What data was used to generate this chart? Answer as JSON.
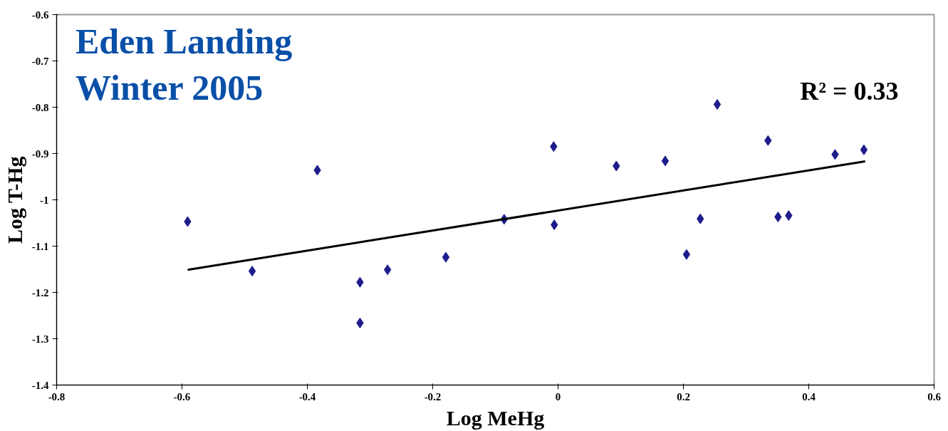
{
  "chart_data": {
    "type": "scatter",
    "xlabel": "Log MeHg",
    "ylabel": "Log T-Hg",
    "annotations": [
      "Eden Landing\nWinter 2005",
      "R² = 0.33"
    ],
    "xlim": [
      -0.8,
      0.6
    ],
    "ylim": [
      -1.4,
      -0.6
    ],
    "xticks": [
      -0.8,
      -0.6,
      -0.4,
      -0.2,
      {
        "value": 0,
        "label": "0"
      },
      0.2,
      0.4,
      0.6
    ],
    "yticks": [
      -1.4,
      -1.3,
      -1.2,
      -1.1,
      {
        "value": -1,
        "label": "-1"
      },
      -0.9,
      -0.8,
      -0.7,
      -0.6
    ],
    "grid": false,
    "series": [
      {
        "marker": "diamond",
        "color": "#1c1c8c",
        "x": [
          -0.591,
          -0.488,
          -0.384,
          -0.316,
          -0.316,
          -0.272,
          -0.179,
          -0.086,
          -0.007,
          -0.006,
          0.093,
          0.171,
          0.205,
          0.227,
          0.254,
          0.335,
          0.351,
          0.368,
          0.442,
          0.488
        ],
        "values": [
          -1.047,
          -1.154,
          -0.936,
          -1.178,
          -1.266,
          -1.151,
          -1.124,
          -1.042,
          -0.885,
          -1.054,
          -0.927,
          -0.916,
          -1.118,
          -1.041,
          -0.794,
          -0.872,
          -1.037,
          -1.034,
          -0.902,
          -0.892
        ]
      },
      {
        "type": "line",
        "marker": "none",
        "color": "#000000",
        "x": [
          -0.591,
          0.49
        ],
        "values": [
          -1.151,
          -0.917
        ]
      }
    ]
  }
}
